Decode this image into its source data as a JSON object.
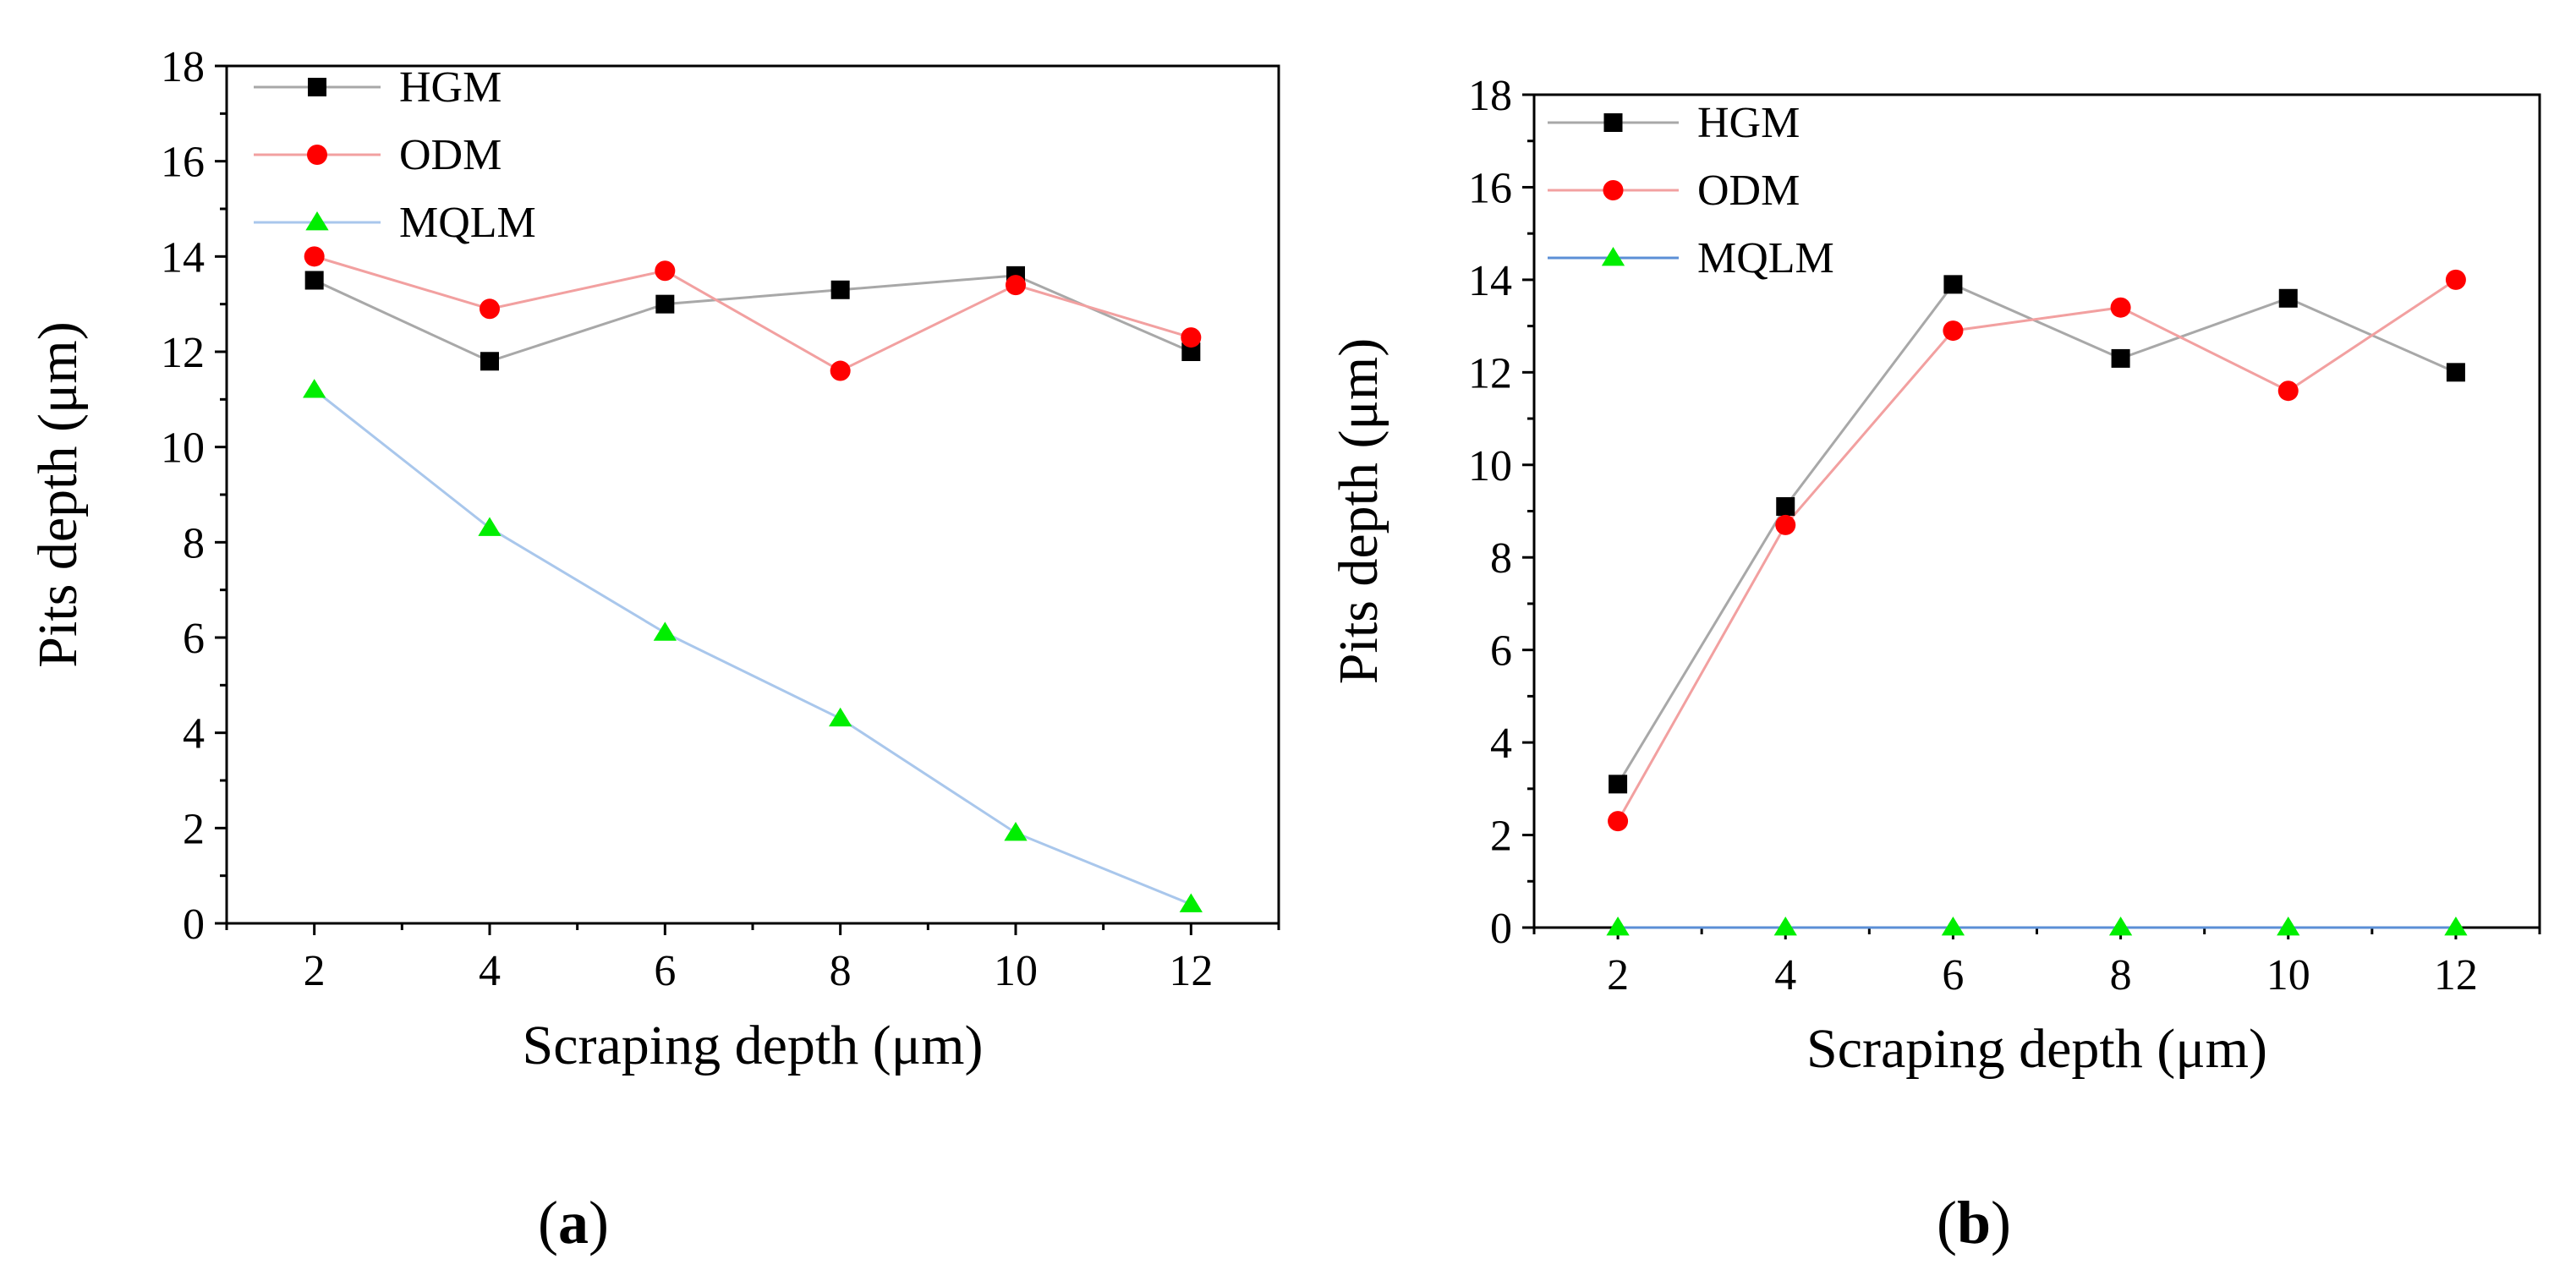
{
  "figure": {
    "panels": [
      {
        "label_prefix": "(",
        "label_letter": "a",
        "label_suffix": ")"
      },
      {
        "label_prefix": "(",
        "label_letter": "b",
        "label_suffix": ")"
      }
    ]
  },
  "chart_data": [
    {
      "type": "line",
      "xlabel": "Scraping depth (μm)",
      "ylabel": "Pits depth (μm)",
      "x": [
        2,
        4,
        6,
        8,
        10,
        12
      ],
      "xticks": [
        "2",
        "4",
        "6",
        "8",
        "10",
        "12"
      ],
      "yticks": [
        "0",
        "2",
        "4",
        "6",
        "8",
        "10",
        "12",
        "14",
        "16",
        "18"
      ],
      "xlim": [
        1,
        13
      ],
      "ylim": [
        0,
        18
      ],
      "grid": false,
      "legend_position": "top-left",
      "series": [
        {
          "name": "HGM",
          "marker": "square",
          "line_color": "#a8a8a8",
          "marker_color": "#000000",
          "values": [
            13.5,
            11.8,
            13.0,
            13.3,
            13.6,
            12.0
          ]
        },
        {
          "name": "ODM",
          "marker": "circle",
          "line_color": "#f2a0a0",
          "marker_color": "#ff0000",
          "values": [
            14.0,
            12.9,
            13.7,
            11.6,
            13.4,
            12.3
          ]
        },
        {
          "name": "MQLM",
          "marker": "triangle",
          "line_color": "#a9c7ec",
          "marker_color": "#00ee00",
          "values": [
            11.2,
            8.3,
            6.1,
            4.3,
            1.9,
            0.4
          ]
        }
      ]
    },
    {
      "type": "line",
      "xlabel": "Scraping depth (μm)",
      "ylabel": "Pits depth (μm)",
      "x": [
        2,
        4,
        6,
        8,
        10,
        12
      ],
      "xticks": [
        "2",
        "4",
        "6",
        "8",
        "10",
        "12"
      ],
      "yticks": [
        "0",
        "2",
        "4",
        "6",
        "8",
        "10",
        "12",
        "14",
        "16",
        "18"
      ],
      "xlim": [
        1,
        13
      ],
      "ylim": [
        0,
        18
      ],
      "grid": false,
      "legend_position": "top-left",
      "series": [
        {
          "name": "HGM",
          "marker": "square",
          "line_color": "#a8a8a8",
          "marker_color": "#000000",
          "values": [
            3.1,
            9.1,
            13.9,
            12.3,
            13.6,
            12.0
          ]
        },
        {
          "name": "ODM",
          "marker": "circle",
          "line_color": "#f2a0a0",
          "marker_color": "#ff0000",
          "values": [
            2.3,
            8.7,
            12.9,
            13.4,
            11.6,
            14.0
          ]
        },
        {
          "name": "MQLM",
          "marker": "triangle",
          "line_color": "#5b8fd6",
          "marker_color": "#00ee00",
          "values": [
            0,
            0,
            0,
            0,
            0,
            0
          ]
        }
      ]
    }
  ]
}
